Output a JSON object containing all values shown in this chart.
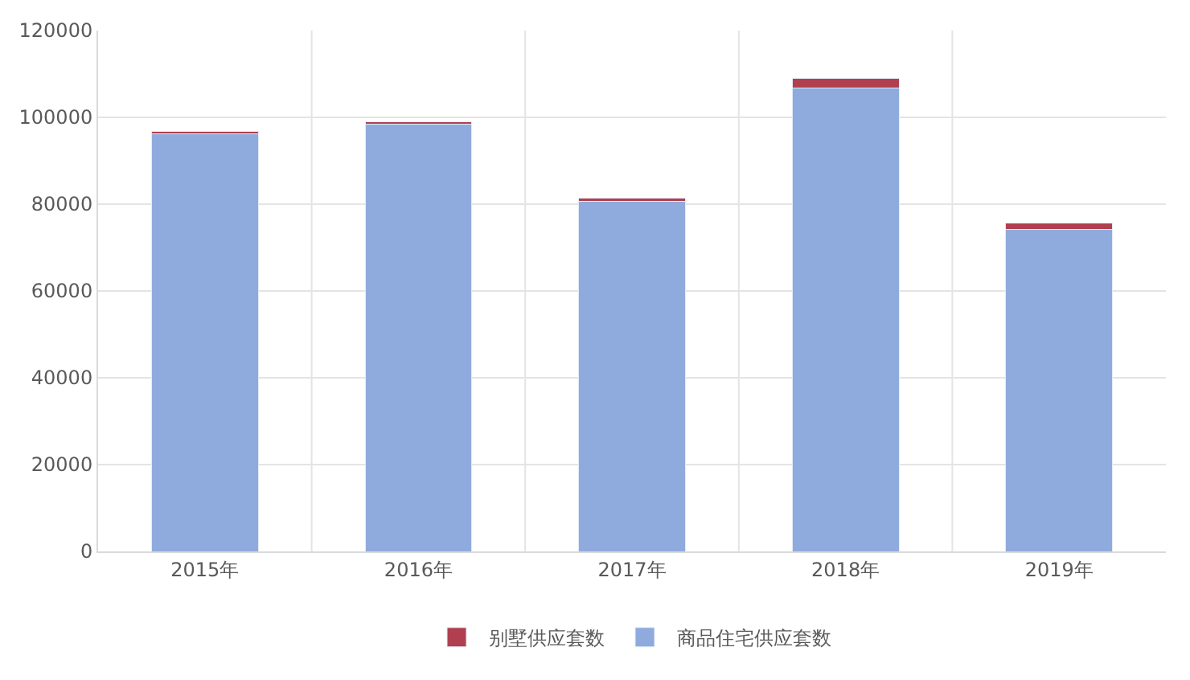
{
  "chart_data": {
    "type": "bar",
    "stacked": true,
    "categories": [
      "2015年",
      "2016年",
      "2017年",
      "2018年",
      "2019年"
    ],
    "series": [
      {
        "name": "商品住宅供应套数",
        "color": "#8faadc",
        "values": [
          96200,
          98500,
          80600,
          106700,
          74200
        ]
      },
      {
        "name": "别墅供应套数",
        "color": "#b0404f",
        "values": [
          500,
          500,
          800,
          2200,
          1500
        ]
      }
    ],
    "ylim": [
      0,
      120000
    ],
    "yticks": [
      0,
      20000,
      40000,
      60000,
      80000,
      100000,
      120000
    ],
    "grid": true,
    "legend": "bottom"
  }
}
